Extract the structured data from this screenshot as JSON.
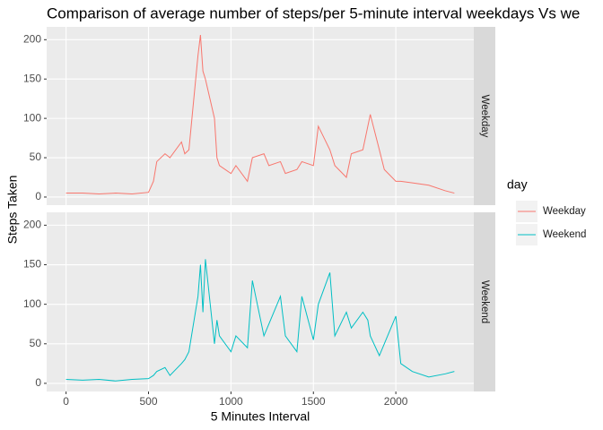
{
  "chart_data": {
    "type": "line",
    "title": "Comparison of average number of steps/per 5-minute interval weekdays Vs we",
    "x_label": "5 Minutes Interval",
    "y_label": "Steps Taken",
    "legend_title": "day",
    "facet": true,
    "grid": true,
    "xlim": [
      -117.75,
      2472.75
    ],
    "xticks": [
      0,
      500,
      1000,
      1500,
      2000
    ],
    "ylim": [
      -10.3,
      216.3
    ],
    "yticks": [
      0,
      50,
      100,
      150,
      200
    ],
    "x": [
      0,
      100,
      200,
      300,
      400,
      500,
      530,
      550,
      600,
      630,
      700,
      720,
      745,
      800,
      815,
      830,
      845,
      900,
      915,
      930,
      1000,
      1030,
      1100,
      1130,
      1200,
      1230,
      1300,
      1330,
      1400,
      1430,
      1500,
      1530,
      1600,
      1630,
      1700,
      1730,
      1800,
      1830,
      1845,
      1900,
      1930,
      2000,
      2030,
      2100,
      2200,
      2300,
      2355
    ],
    "series": [
      {
        "name": "Weekday",
        "color": "#f8766d",
        "values": [
          5,
          5,
          4,
          5,
          4,
          6,
          20,
          45,
          55,
          50,
          70,
          55,
          60,
          180,
          206,
          160,
          150,
          100,
          50,
          40,
          30,
          40,
          20,
          50,
          55,
          40,
          45,
          30,
          35,
          45,
          40,
          90,
          60,
          40,
          25,
          55,
          60,
          90,
          105,
          60,
          35,
          20,
          20,
          18,
          15,
          8,
          5
        ]
      },
      {
        "name": "Weekend",
        "color": "#00bfc4",
        "values": [
          5,
          4,
          5,
          3,
          5,
          6,
          10,
          15,
          20,
          10,
          25,
          30,
          40,
          110,
          150,
          90,
          157,
          50,
          80,
          60,
          40,
          60,
          45,
          130,
          60,
          75,
          110,
          60,
          40,
          110,
          55,
          100,
          140,
          60,
          90,
          70,
          90,
          80,
          60,
          35,
          50,
          85,
          25,
          15,
          8,
          12,
          15
        ]
      }
    ]
  }
}
